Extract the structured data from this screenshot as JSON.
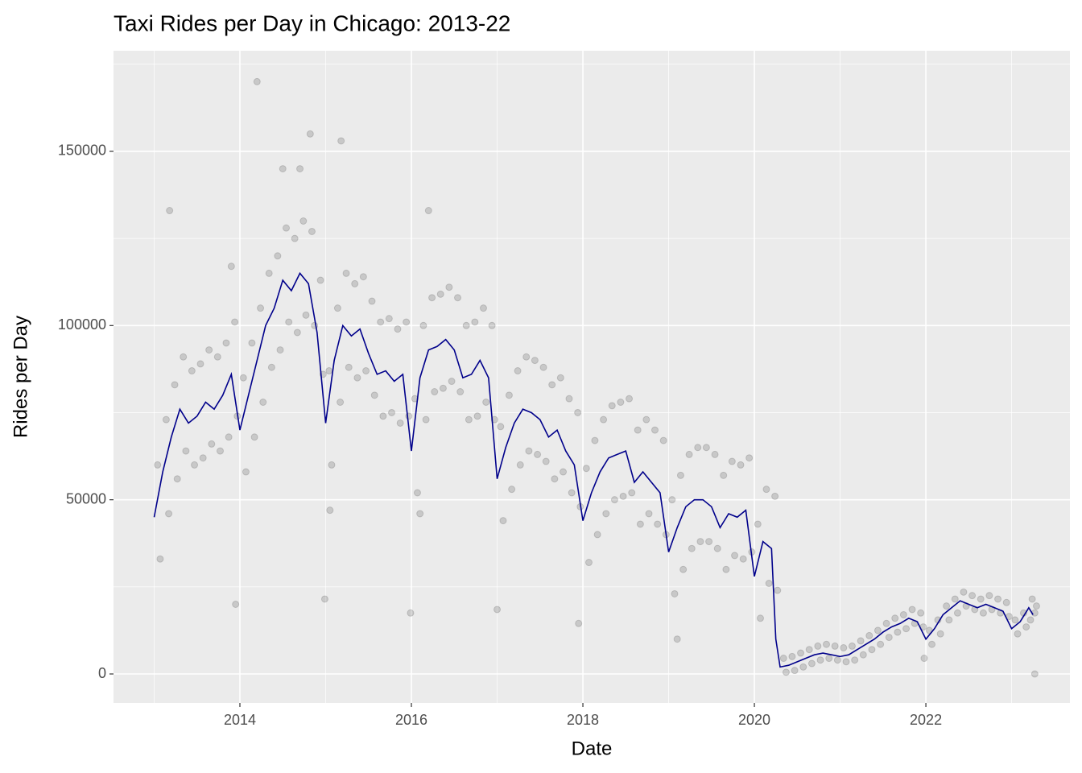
{
  "chart_data": {
    "type": "scatter",
    "title": "Taxi Rides per Day in Chicago: 2013-22",
    "x_label": "Date",
    "y_label": "Rides per Day",
    "xlim": [
      2012.526,
      2023.68
    ],
    "ylim": [
      -8320,
      178880
    ],
    "xticks": [
      2014,
      2016,
      2018,
      2020,
      2022
    ],
    "yticks": [
      0,
      50000,
      100000,
      150000
    ],
    "xminor": [
      2013,
      2015,
      2017,
      2019,
      2021,
      2023
    ],
    "yminor": [
      25000,
      75000,
      125000,
      175000
    ],
    "grid": true,
    "series": [
      {
        "kind": "points",
        "color": "#000000",
        "alpha": 0.15,
        "x": [
          2013.04,
          2013.14,
          2013.24,
          2013.34,
          2013.44,
          2013.54,
          2013.64,
          2013.74,
          2013.84,
          2013.94,
          2014.04,
          2014.14,
          2014.24,
          2014.34,
          2014.44,
          2014.54,
          2014.64,
          2014.74,
          2014.84,
          2014.94,
          2015.04,
          2015.14,
          2015.24,
          2015.34,
          2015.44,
          2015.54,
          2015.64,
          2015.74,
          2015.84,
          2015.94,
          2016.04,
          2016.14,
          2016.24,
          2016.34,
          2016.44,
          2016.54,
          2016.64,
          2016.74,
          2016.84,
          2016.94,
          2017.04,
          2017.14,
          2017.24,
          2017.34,
          2017.44,
          2017.54,
          2017.64,
          2017.74,
          2017.84,
          2017.94,
          2018.04,
          2018.14,
          2018.24,
          2018.34,
          2018.44,
          2018.54,
          2018.64,
          2018.74,
          2018.84,
          2018.94,
          2019.04,
          2019.14,
          2019.24,
          2019.34,
          2019.44,
          2019.54,
          2019.64,
          2019.74,
          2019.84,
          2019.94,
          2020.04,
          2020.14,
          2020.24,
          2020.34,
          2020.44,
          2020.54,
          2020.64,
          2020.74,
          2020.84,
          2020.94,
          2021.04,
          2021.14,
          2021.24,
          2021.34,
          2021.44,
          2021.54,
          2021.64,
          2021.74,
          2021.84,
          2021.94,
          2022.04,
          2022.14,
          2022.24,
          2022.34,
          2022.44,
          2022.54,
          2022.64,
          2022.74,
          2022.84,
          2022.94,
          2023.04,
          2023.14,
          2023.24,
          2023.29
        ],
        "values": [
          60000,
          73000,
          83000,
          91000,
          87000,
          89000,
          93000,
          91000,
          95000,
          101000,
          85000,
          95000,
          105000,
          115000,
          120000,
          128000,
          125000,
          130000,
          127000,
          113000,
          87000,
          105000,
          115000,
          112000,
          114000,
          107000,
          101000,
          102000,
          99000,
          101000,
          79000,
          100000,
          108000,
          109000,
          111000,
          108000,
          100000,
          101000,
          105000,
          100000,
          71000,
          80000,
          87000,
          91000,
          90000,
          88000,
          83000,
          85000,
          79000,
          75000,
          59000,
          67000,
          73000,
          77000,
          78000,
          79000,
          70000,
          73000,
          70000,
          67000,
          50000,
          57000,
          63000,
          65000,
          65000,
          63000,
          57000,
          61000,
          60000,
          62000,
          43000,
          53000,
          51000,
          4500,
          5000,
          6000,
          7000,
          8000,
          8500,
          8000,
          7500,
          8000,
          9500,
          11000,
          12500,
          14500,
          16000,
          17000,
          18500,
          17500,
          12500,
          15500,
          19500,
          21500,
          23500,
          22500,
          21500,
          22500,
          21500,
          20500,
          15500,
          17500,
          21500,
          19500
        ]
      },
      {
        "kind": "points",
        "color": "#000000",
        "alpha": 0.15,
        "x": [
          2013.07,
          2013.17,
          2013.27,
          2013.37,
          2013.47,
          2013.57,
          2013.67,
          2013.77,
          2013.87,
          2013.97,
          2014.07,
          2014.17,
          2014.27,
          2014.37,
          2014.47,
          2014.57,
          2014.67,
          2014.77,
          2014.87,
          2014.97,
          2015.07,
          2015.17,
          2015.27,
          2015.37,
          2015.47,
          2015.57,
          2015.67,
          2015.77,
          2015.87,
          2015.97,
          2016.07,
          2016.17,
          2016.27,
          2016.37,
          2016.47,
          2016.57,
          2016.67,
          2016.77,
          2016.87,
          2016.97,
          2017.07,
          2017.17,
          2017.27,
          2017.37,
          2017.47,
          2017.57,
          2017.67,
          2017.77,
          2017.87,
          2017.97,
          2018.07,
          2018.17,
          2018.27,
          2018.37,
          2018.47,
          2018.57,
          2018.67,
          2018.77,
          2018.87,
          2018.97,
          2019.07,
          2019.17,
          2019.27,
          2019.37,
          2019.47,
          2019.57,
          2019.67,
          2019.77,
          2019.87,
          2019.97,
          2020.07,
          2020.17,
          2020.27,
          2020.37,
          2020.47,
          2020.57,
          2020.67,
          2020.77,
          2020.87,
          2020.97,
          2021.07,
          2021.17,
          2021.27,
          2021.37,
          2021.47,
          2021.57,
          2021.67,
          2021.77,
          2021.87,
          2021.97,
          2022.07,
          2022.17,
          2022.27,
          2022.37,
          2022.47,
          2022.57,
          2022.67,
          2022.77,
          2022.87,
          2022.97,
          2023.07,
          2023.17,
          2023.27,
          2023.22
        ],
        "values": [
          33000,
          46000,
          56000,
          64000,
          60000,
          62000,
          66000,
          64000,
          68000,
          74000,
          58000,
          68000,
          78000,
          88000,
          93000,
          101000,
          98000,
          103000,
          100000,
          86000,
          60000,
          78000,
          88000,
          85000,
          87000,
          80000,
          74000,
          75000,
          72000,
          74000,
          52000,
          73000,
          81000,
          82000,
          84000,
          81000,
          73000,
          74000,
          78000,
          73000,
          44000,
          53000,
          60000,
          64000,
          63000,
          61000,
          56000,
          58000,
          52000,
          48000,
          32000,
          40000,
          46000,
          50000,
          51000,
          52000,
          43000,
          46000,
          43000,
          40000,
          23000,
          30000,
          36000,
          38000,
          38000,
          36000,
          30000,
          34000,
          33000,
          35000,
          16000,
          26000,
          24000,
          500,
          1000,
          2000,
          3000,
          4000,
          4500,
          4000,
          3500,
          4000,
          5500,
          7000,
          8500,
          10500,
          12000,
          13000,
          14500,
          13500,
          8500,
          11500,
          15500,
          17500,
          19500,
          18500,
          17500,
          18500,
          17500,
          16500,
          11500,
          13500,
          17500,
          15500
        ]
      },
      {
        "kind": "points",
        "color": "#000000",
        "alpha": 0.15,
        "x": [
          2014.2,
          2014.82,
          2015.18,
          2013.18,
          2016.2,
          2013.95,
          2014.99,
          2015.99,
          2017.0,
          2017.95,
          2019.1,
          2023.27,
          2021.98,
          2014.5,
          2014.7,
          2013.9,
          2015.05,
          2016.1
        ],
        "values": [
          170000,
          155000,
          153000,
          133000,
          133000,
          20000,
          21500,
          17500,
          18500,
          14500,
          10000,
          0,
          4500,
          145000,
          145000,
          117000,
          47000,
          46000
        ]
      },
      {
        "kind": "line",
        "color": "#00008b",
        "x": [
          2013.0,
          2013.1,
          2013.2,
          2013.3,
          2013.4,
          2013.5,
          2013.6,
          2013.7,
          2013.8,
          2013.9,
          2014.0,
          2014.1,
          2014.2,
          2014.3,
          2014.4,
          2014.5,
          2014.6,
          2014.7,
          2014.8,
          2014.9,
          2015.0,
          2015.1,
          2015.2,
          2015.3,
          2015.4,
          2015.5,
          2015.6,
          2015.7,
          2015.8,
          2015.9,
          2016.0,
          2016.1,
          2016.2,
          2016.3,
          2016.4,
          2016.5,
          2016.6,
          2016.7,
          2016.8,
          2016.9,
          2017.0,
          2017.1,
          2017.2,
          2017.3,
          2017.4,
          2017.5,
          2017.6,
          2017.7,
          2017.8,
          2017.9,
          2018.0,
          2018.1,
          2018.2,
          2018.3,
          2018.4,
          2018.5,
          2018.6,
          2018.7,
          2018.8,
          2018.9,
          2019.0,
          2019.1,
          2019.2,
          2019.3,
          2019.4,
          2019.5,
          2019.6,
          2019.7,
          2019.8,
          2019.9,
          2020.0,
          2020.1,
          2020.2,
          2020.25,
          2020.3,
          2020.4,
          2020.5,
          2020.6,
          2020.7,
          2020.8,
          2020.9,
          2021.0,
          2021.1,
          2021.2,
          2021.3,
          2021.4,
          2021.5,
          2021.6,
          2021.7,
          2021.8,
          2021.9,
          2022.0,
          2022.1,
          2022.2,
          2022.3,
          2022.4,
          2022.5,
          2022.6,
          2022.7,
          2022.8,
          2022.9,
          2023.0,
          2023.1,
          2023.2,
          2023.25
        ],
        "values": [
          45000,
          58000,
          68000,
          76000,
          72000,
          74000,
          78000,
          76000,
          80000,
          86000,
          70000,
          80000,
          90000,
          100000,
          105000,
          113000,
          110000,
          115000,
          112000,
          98000,
          72000,
          90000,
          100000,
          97000,
          99000,
          92000,
          86000,
          87000,
          84000,
          86000,
          64000,
          85000,
          93000,
          94000,
          96000,
          93000,
          85000,
          86000,
          90000,
          85000,
          56000,
          65000,
          72000,
          76000,
          75000,
          73000,
          68000,
          70000,
          64000,
          60000,
          44000,
          52000,
          58000,
          62000,
          63000,
          64000,
          55000,
          58000,
          55000,
          52000,
          35000,
          42000,
          48000,
          50000,
          50000,
          48000,
          42000,
          46000,
          45000,
          47000,
          28000,
          38000,
          36000,
          10000,
          2000,
          2500,
          3500,
          4500,
          5500,
          6000,
          5500,
          5000,
          5500,
          7000,
          8500,
          10000,
          12000,
          13500,
          14500,
          16000,
          15000,
          10000,
          13000,
          17000,
          19000,
          21000,
          20000,
          19000,
          20000,
          19000,
          18000,
          13000,
          15000,
          19000,
          17000
        ]
      }
    ]
  }
}
